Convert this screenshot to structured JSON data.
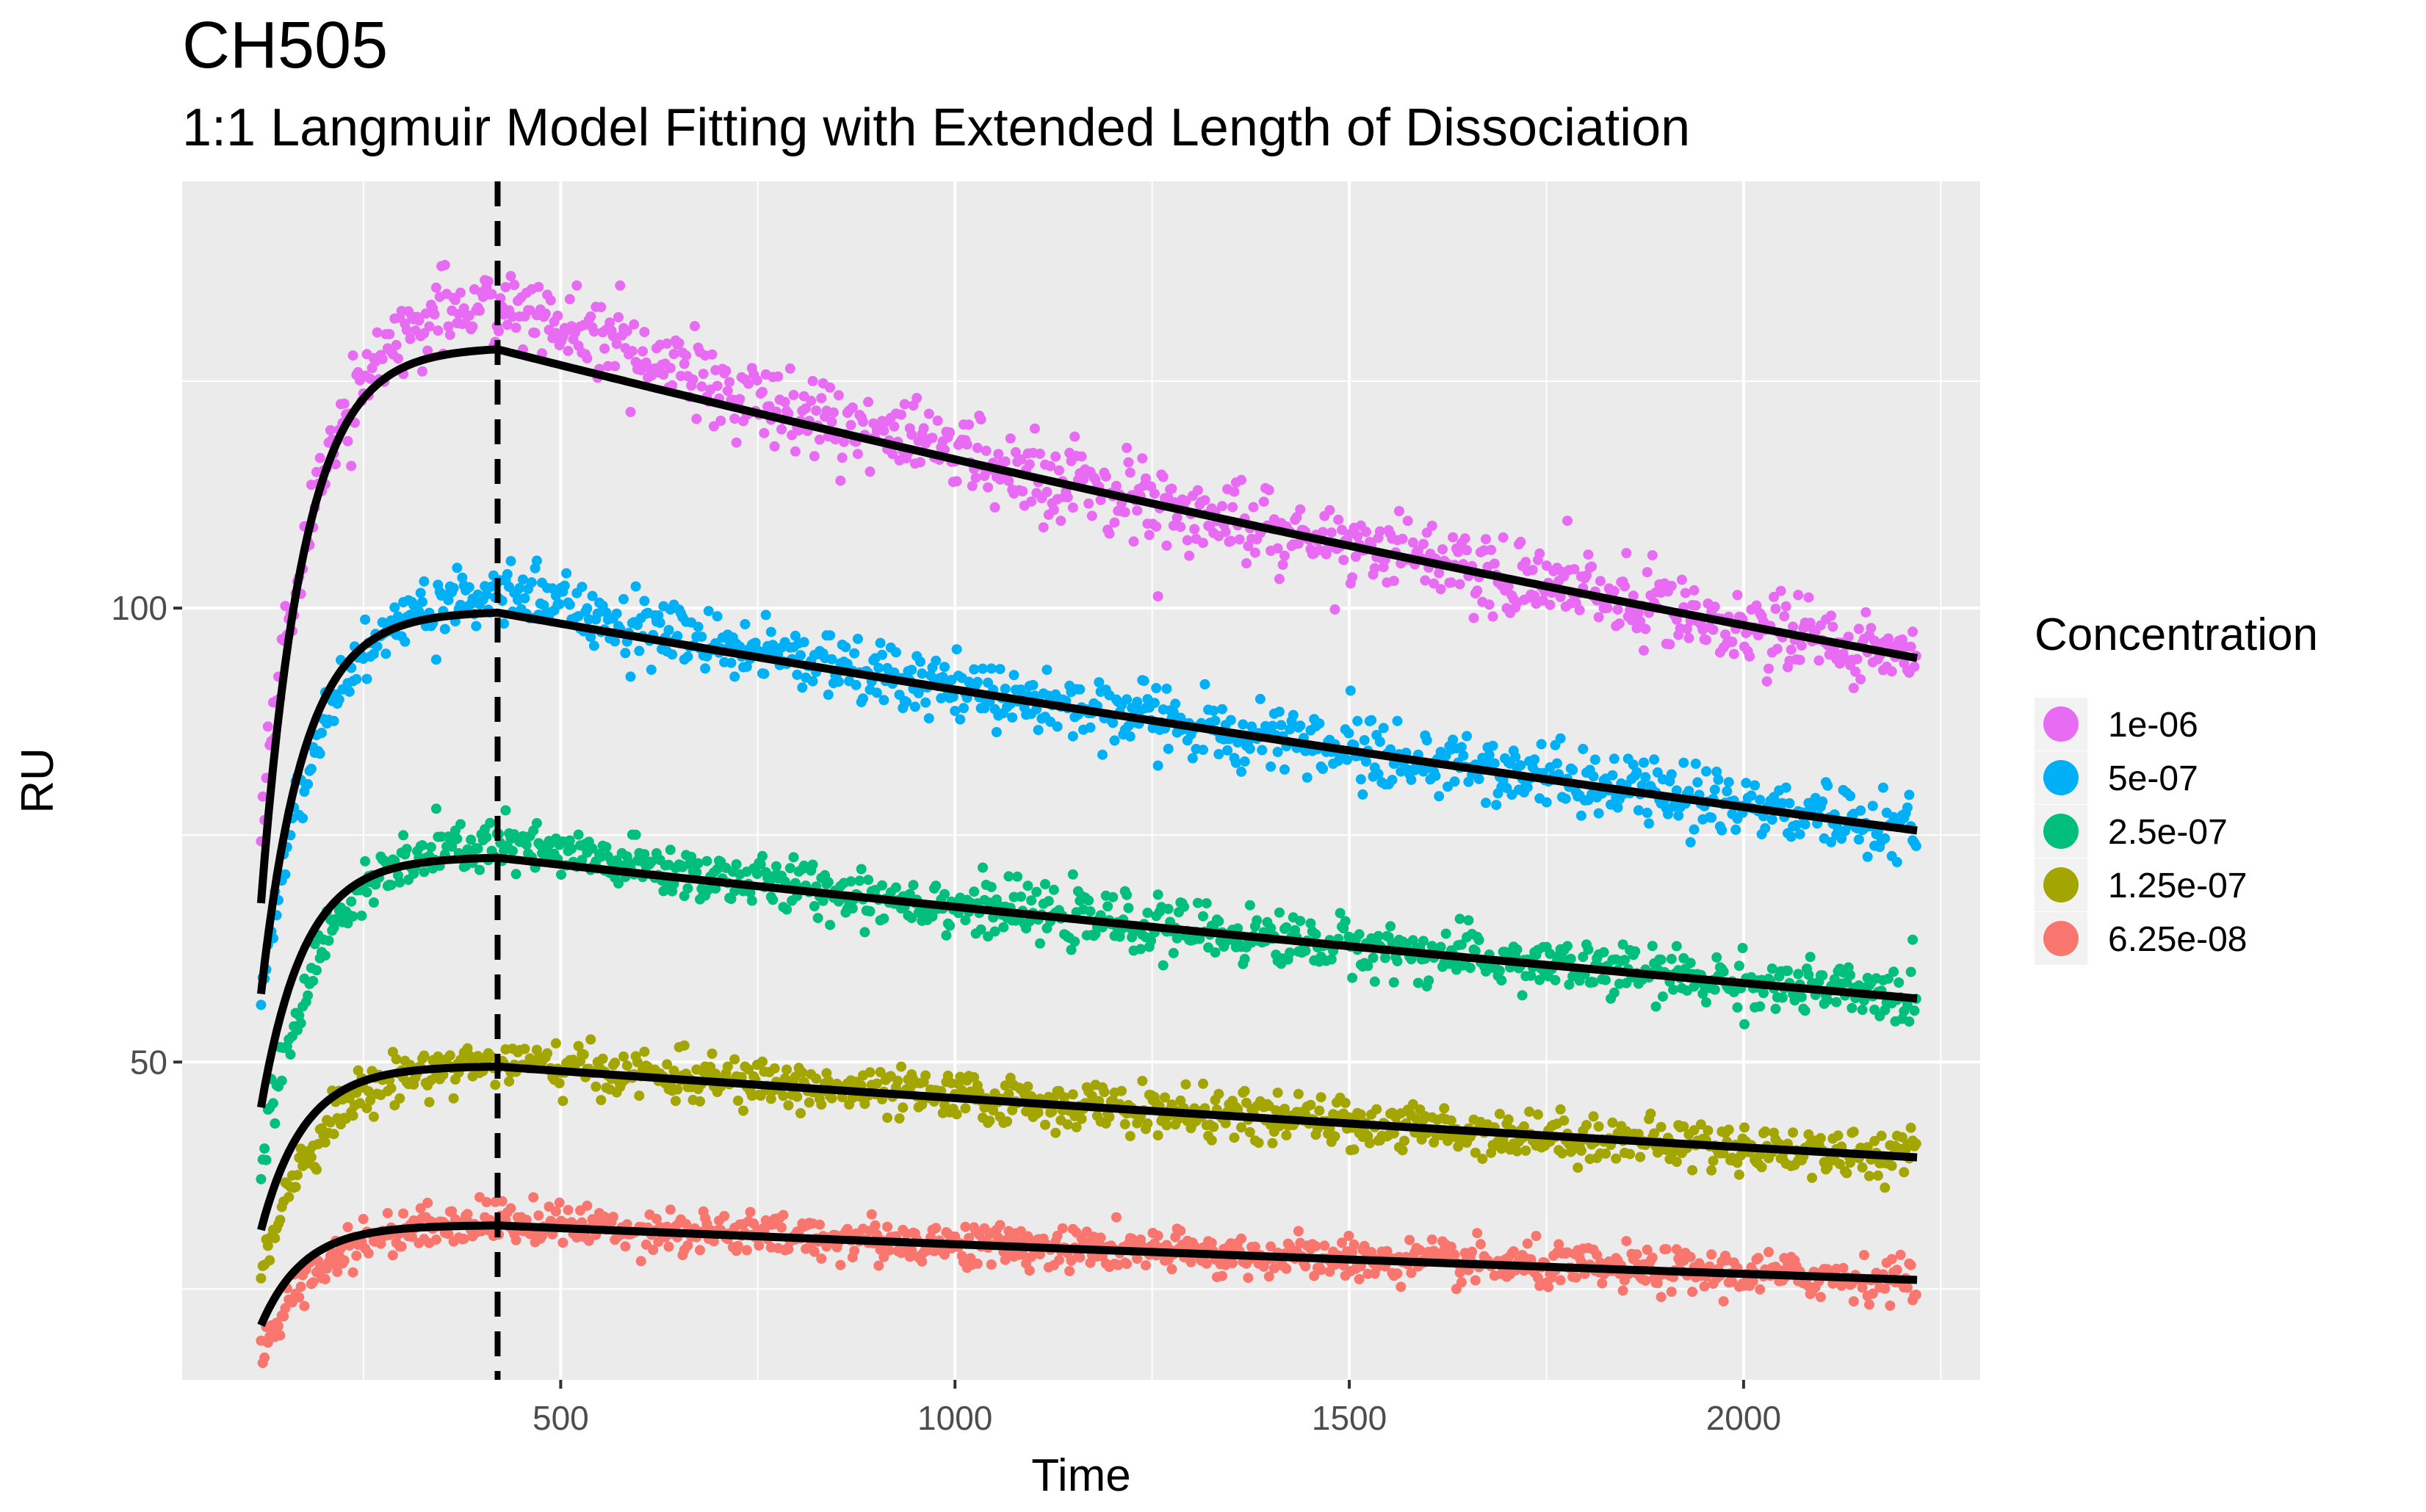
{
  "chart_data": {
    "type": "scatter",
    "title": "CH505",
    "subtitle": "1:1 Langmuir Model Fitting with Extended Length of Dissociation",
    "xlabel": "Time",
    "ylabel": "RU",
    "xlim": [
      20,
      2300
    ],
    "ylim": [
      15,
      147
    ],
    "x_ticks": [
      500,
      1000,
      1500,
      2000
    ],
    "y_ticks": [
      50,
      100
    ],
    "grid": true,
    "background": "#EBEBEB",
    "vline": {
      "x": 420,
      "style": "dashed",
      "color": "#000000"
    },
    "fit_color": "#000000",
    "legend": {
      "title": "Concentration",
      "placement": "right"
    },
    "series": [
      {
        "name": "1e-06",
        "color": "#E76BF3",
        "fit_start": 67.5,
        "fit_peak": 128.5,
        "fit_end": 94.5,
        "data_start": 75,
        "data_peak": 134,
        "noise": 2.2
      },
      {
        "name": "5e-07",
        "color": "#00B0F6",
        "fit_start": 57.5,
        "fit_peak": 99.5,
        "fit_end": 75.5,
        "data_start": 56,
        "data_peak": 102,
        "noise": 1.8
      },
      {
        "name": "2.5e-07",
        "color": "#00BF7D",
        "fit_start": 45.0,
        "fit_peak": 72.5,
        "fit_end": 57.0,
        "data_start": 39,
        "data_peak": 74,
        "noise": 1.5
      },
      {
        "name": "1.25e-07",
        "color": "#A3A500",
        "fit_start": 31.5,
        "fit_peak": 49.5,
        "fit_end": 39.5,
        "data_start": 27,
        "data_peak": 50,
        "noise": 1.3
      },
      {
        "name": "6.25e-08",
        "color": "#F8766D",
        "fit_start": 21.0,
        "fit_peak": 32.0,
        "fit_end": 26.0,
        "data_start": 18,
        "data_peak": 32.5,
        "noise": 1.2
      }
    ],
    "time_range": [
      120,
      2220
    ]
  }
}
